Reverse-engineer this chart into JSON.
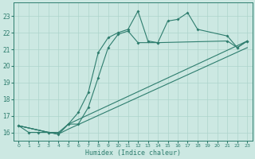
{
  "xlabel": "Humidex (Indice chaleur)",
  "xlim": [
    -0.5,
    23.5
  ],
  "ylim": [
    15.5,
    23.8
  ],
  "xticks": [
    0,
    1,
    2,
    3,
    4,
    5,
    6,
    7,
    8,
    9,
    10,
    11,
    12,
    13,
    14,
    15,
    16,
    17,
    18,
    19,
    20,
    21,
    22,
    23
  ],
  "yticks": [
    16,
    17,
    18,
    19,
    20,
    21,
    22,
    23
  ],
  "bg_color": "#cce8e2",
  "line_color": "#2e7d6e",
  "grid_color": "#add4cc",
  "line1_x": [
    0,
    1,
    2,
    3,
    4,
    5,
    6,
    7,
    8,
    9,
    10,
    11,
    12,
    13,
    14,
    15,
    16,
    17,
    18,
    21,
    22,
    23
  ],
  "line1_y": [
    16.4,
    16.0,
    16.0,
    16.0,
    16.0,
    16.5,
    17.2,
    18.4,
    20.8,
    21.7,
    22.0,
    22.2,
    23.3,
    21.5,
    21.4,
    22.7,
    22.8,
    23.2,
    22.2,
    21.8,
    21.1,
    21.5
  ],
  "line2_x": [
    0,
    3,
    4,
    5,
    6,
    7,
    8,
    9,
    10,
    11,
    12,
    14,
    21,
    22,
    23
  ],
  "line2_y": [
    16.4,
    16.0,
    15.9,
    16.5,
    16.5,
    17.5,
    19.3,
    21.1,
    21.9,
    22.1,
    21.4,
    21.4,
    21.5,
    21.1,
    21.5
  ],
  "line3_x": [
    0,
    3,
    4,
    5,
    23
  ],
  "line3_y": [
    16.4,
    16.0,
    15.9,
    16.5,
    21.5
  ],
  "line4_x": [
    0,
    3,
    4,
    5,
    23
  ],
  "line4_y": [
    16.4,
    16.0,
    15.9,
    16.2,
    21.1
  ]
}
